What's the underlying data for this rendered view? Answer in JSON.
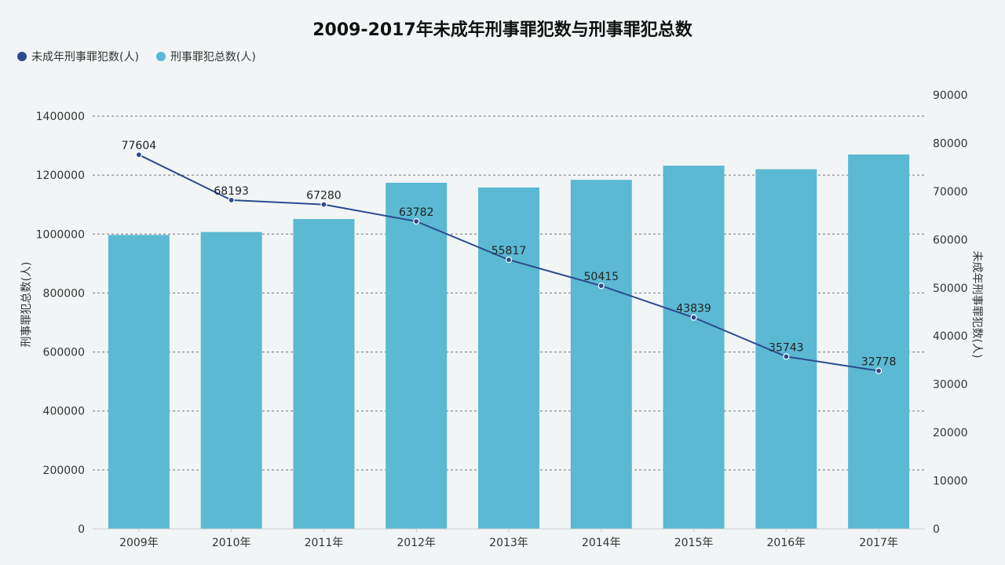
{
  "chart_data": {
    "type": "bar+line",
    "title": "2009-2017年未成年刑事罪犯数与刑事罪犯总数",
    "categories": [
      "2009年",
      "2010年",
      "2011年",
      "2012年",
      "2013年",
      "2014年",
      "2015年",
      "2016年",
      "2017年"
    ],
    "series": [
      {
        "name": "未成年刑事罪犯数(人)",
        "type": "line",
        "axis": "right",
        "color": "#2b4b8e",
        "values": [
          77604,
          68193,
          67280,
          63782,
          55817,
          50415,
          43839,
          35743,
          32778
        ]
      },
      {
        "name": "刑事罪犯总数(人)",
        "type": "bar",
        "axis": "left",
        "color": "#5bb9d3",
        "values": [
          997000,
          1007000,
          1051000,
          1174000,
          1158000,
          1184000,
          1232000,
          1220000,
          1270000
        ]
      }
    ],
    "ylabel_left": "刑事罪犯总数(人)",
    "ylabel_right": "未成年刑事罪犯数(人)",
    "ylim_left": [
      0,
      1400000
    ],
    "ylim_right": [
      0,
      90000
    ],
    "yticks_left": [
      0,
      200000,
      400000,
      600000,
      800000,
      1000000,
      1200000,
      1400000
    ],
    "yticks_right": [
      0,
      10000,
      20000,
      30000,
      40000,
      50000,
      60000,
      70000,
      80000,
      90000
    ],
    "grid": true,
    "legend_position": "top-left"
  }
}
